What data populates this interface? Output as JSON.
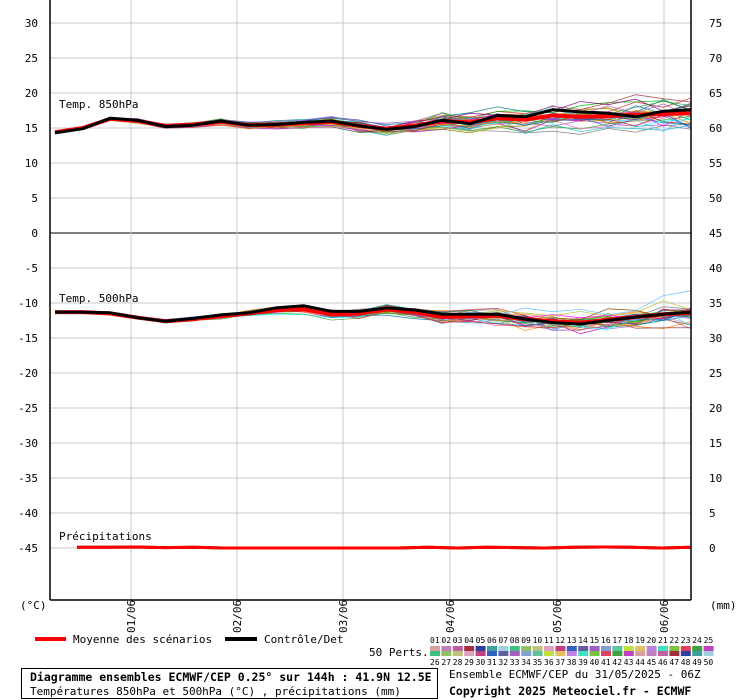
{
  "chart_data": {
    "type": "line",
    "title": "Diagramme ensembles ECMWF/CEP 0.25° sur 144h : 41.9N 12.5E",
    "subtitle": "Températures 850hPa et 500hPa (°C) , précipitations (mm)",
    "run_label": "Ensemble ECMWF/CEP du 31/05/2025 - 06Z",
    "copyright": "Copyright 2025 Meteociel.fr - ECMWF",
    "left_unit": "(°C)",
    "right_unit": "(mm)",
    "left_ticks": [
      "30",
      "25",
      "20",
      "15",
      "10",
      "5",
      "0",
      "-5",
      "-10",
      "-15",
      "-20",
      "-25",
      "-30",
      "-35",
      "-40",
      "-45"
    ],
    "right_ticks": [
      "75",
      "70",
      "65",
      "60",
      "55",
      "50",
      "45",
      "40",
      "35",
      "30",
      "25",
      "20",
      "15",
      "10",
      "5",
      "0"
    ],
    "x_ticks": [
      "01/06",
      "02/06",
      "03/06",
      "04/06",
      "05/06",
      "06/06"
    ],
    "ylim": [
      -52,
      32
    ],
    "panels": [
      {
        "name": "Temp. 850hPa"
      },
      {
        "name": "Temp. 500hPa"
      },
      {
        "name": "Précipitations"
      }
    ],
    "legend": {
      "mean": "Moyenne des scénarios",
      "control": "Contrôle/Det",
      "perts": "50 Perts.",
      "mean_color": "#ff0000",
      "control_color": "#000000"
    },
    "member_labels_row1": [
      "01",
      "02",
      "03",
      "04",
      "05",
      "06",
      "07",
      "08",
      "09",
      "10",
      "11",
      "12",
      "13",
      "14",
      "15",
      "16",
      "17",
      "18",
      "19",
      "20",
      "21",
      "22",
      "23",
      "24",
      "25"
    ],
    "member_labels_row2": [
      "26",
      "27",
      "28",
      "29",
      "30",
      "31",
      "32",
      "33",
      "34",
      "35",
      "36",
      "37",
      "38",
      "39",
      "40",
      "41",
      "42",
      "43",
      "44",
      "45",
      "46",
      "47",
      "48",
      "49",
      "50"
    ],
    "series": [
      {
        "key": "t850_mean",
        "values": [
          14.4,
          15.0,
          16.3,
          16.0,
          15.3,
          15.5,
          15.9,
          15.4,
          15.5,
          15.7,
          15.9,
          15.3,
          14.9,
          15.3,
          16.0,
          15.8,
          16.4,
          16.2,
          16.8,
          16.6,
          16.7,
          16.9,
          17.0,
          17.1
        ]
      },
      {
        "key": "t850_control",
        "values": [
          14.3,
          14.9,
          16.4,
          16.1,
          15.2,
          15.4,
          16.0,
          15.4,
          15.5,
          15.8,
          16.0,
          15.3,
          14.8,
          15.2,
          16.1,
          15.6,
          16.8,
          16.6,
          17.6,
          17.3,
          17.1,
          16.6,
          17.4,
          17.6
        ]
      },
      {
        "key": "t500_mean",
        "values": [
          -11.3,
          -11.3,
          -11.5,
          -12.1,
          -12.6,
          -12.3,
          -11.9,
          -11.5,
          -11.0,
          -10.9,
          -11.6,
          -11.5,
          -10.9,
          -11.3,
          -12.0,
          -11.9,
          -11.8,
          -12.3,
          -12.6,
          -12.8,
          -12.4,
          -12.0,
          -11.6,
          -11.4
        ]
      },
      {
        "key": "t500_control",
        "values": [
          -11.3,
          -11.3,
          -11.4,
          -12.1,
          -12.6,
          -12.2,
          -11.7,
          -11.4,
          -10.7,
          -10.4,
          -11.2,
          -11.2,
          -10.7,
          -11.0,
          -11.6,
          -11.6,
          -11.6,
          -12.3,
          -12.8,
          -13.0,
          -12.5,
          -12.0,
          -11.6,
          -11.3
        ]
      },
      {
        "key": "precip_mean",
        "values": [
          0.1,
          0.1,
          0.15,
          0.05,
          0.1,
          0,
          0,
          0,
          0,
          0,
          0,
          0,
          0.1,
          0,
          0.1,
          0.05,
          0,
          0.1,
          0.15,
          0.1,
          0,
          0.1
        ]
      }
    ]
  }
}
